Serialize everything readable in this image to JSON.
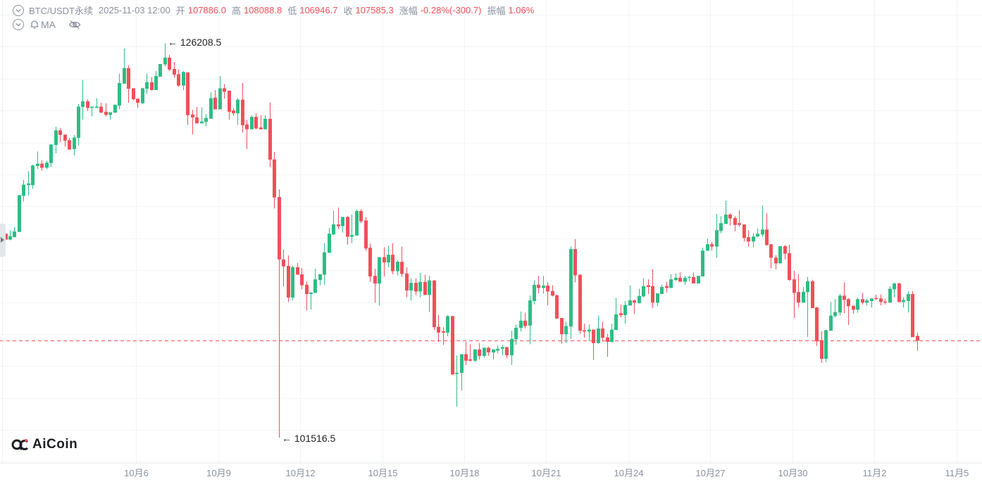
{
  "header": {
    "symbol": "BTC/USDT永续",
    "time": "2025-11-03 12:00",
    "open_label": "开",
    "open": "107886.0",
    "high_label": "高",
    "high": "108088.8",
    "low_label": "低",
    "low": "106946.7",
    "close_label": "收",
    "close": "107585.3",
    "change_label": "涨幅",
    "change": "-0.28%(-300.7)",
    "amplitude_label": "振幅",
    "amplitude": "1.06%",
    "indicator": "MA",
    "icons": [
      "chevron-down-circle-icon",
      "bell-icon",
      "eye-off-icon"
    ]
  },
  "logo": "AiCoin",
  "annotations": {
    "max": "126208.5",
    "min": "101516.5"
  },
  "colors": {
    "up": "#2ebd85",
    "down": "#f0505a",
    "label": "#8a919e",
    "grid": "#f3f4f6",
    "last_price_line": "#f0505a"
  },
  "chart_data": {
    "type": "candlestick",
    "first_candle_time": "2025-10-01 04:00",
    "interval_hours": 4,
    "ylim": [
      99930,
      128930
    ],
    "grid": true,
    "horizontal_grid_every": 2000,
    "last_price": 107585.3,
    "x_ticks": [
      {
        "label": "10月6",
        "date": "2025-10-06"
      },
      {
        "label": "10月9",
        "date": "2025-10-09"
      },
      {
        "label": "10月12",
        "date": "2025-10-12"
      },
      {
        "label": "10月15",
        "date": "2025-10-15"
      },
      {
        "label": "10月18",
        "date": "2025-10-18"
      },
      {
        "label": "10月21",
        "date": "2025-10-21"
      },
      {
        "label": "10月24",
        "date": "2025-10-24"
      },
      {
        "label": "10月27",
        "date": "2025-10-27"
      },
      {
        "label": "10月30",
        "date": "2025-10-30"
      },
      {
        "label": "11月2",
        "date": "2025-11-02"
      },
      {
        "label": "11月5",
        "date": "2025-11-05"
      }
    ],
    "ohlc": [
      [
        114290,
        114290,
        113920,
        113920
      ],
      [
        113920,
        114510,
        113880,
        114140
      ],
      [
        114070,
        114700,
        114070,
        114430
      ],
      [
        114400,
        116730,
        114400,
        116700
      ],
      [
        116660,
        117660,
        116310,
        117360
      ],
      [
        117330,
        118200,
        116690,
        117440
      ],
      [
        117330,
        118610,
        117100,
        118560
      ],
      [
        118530,
        119440,
        118340,
        118680
      ],
      [
        118680,
        118900,
        118240,
        118420
      ],
      [
        118420,
        118860,
        118330,
        118740
      ],
      [
        118710,
        119880,
        118460,
        119880
      ],
      [
        119850,
        120990,
        119330,
        120760
      ],
      [
        120760,
        120910,
        120030,
        120470
      ],
      [
        120500,
        120500,
        119760,
        120120
      ],
      [
        120150,
        120290,
        119560,
        119560
      ],
      [
        119590,
        120470,
        119190,
        120320
      ],
      [
        120290,
        122400,
        119820,
        122250
      ],
      [
        122230,
        123920,
        121430,
        122580
      ],
      [
        122580,
        122710,
        121980,
        122170
      ],
      [
        122170,
        122250,
        121640,
        122250
      ],
      [
        122170,
        122780,
        122170,
        122250
      ],
      [
        122250,
        122490,
        121870,
        121870
      ],
      [
        121930,
        122460,
        121640,
        121730
      ],
      [
        121730,
        121900,
        121430,
        121900
      ],
      [
        121870,
        122370,
        121870,
        122370
      ],
      [
        122310,
        124320,
        122080,
        123730
      ],
      [
        123690,
        125890,
        123690,
        124660
      ],
      [
        124660,
        124830,
        122490,
        123370
      ],
      [
        123400,
        123400,
        122640,
        122710
      ],
      [
        122750,
        122750,
        122170,
        122490
      ],
      [
        122460,
        123440,
        122420,
        123400
      ],
      [
        123370,
        124320,
        123050,
        123780
      ],
      [
        123780,
        124100,
        123250,
        123290
      ],
      [
        123290,
        124480,
        123290,
        124170
      ],
      [
        124130,
        124920,
        124130,
        124920
      ],
      [
        124890,
        126208.5,
        124760,
        125320
      ],
      [
        125320,
        125490,
        124470,
        124570
      ],
      [
        124610,
        125050,
        124060,
        124250
      ],
      [
        124280,
        124570,
        123480,
        123570
      ],
      [
        123570,
        124470,
        123280,
        124420
      ],
      [
        124390,
        124420,
        121130,
        121710
      ],
      [
        121760,
        122050,
        120510,
        121570
      ],
      [
        121580,
        122230,
        121200,
        121200
      ],
      [
        121200,
        122200,
        121200,
        121320
      ],
      [
        121290,
        121790,
        121020,
        121540
      ],
      [
        121490,
        123150,
        121490,
        122780
      ],
      [
        122810,
        123290,
        122080,
        122080
      ],
      [
        122080,
        124170,
        122080,
        123400
      ],
      [
        123400,
        123660,
        122750,
        123180
      ],
      [
        123250,
        123250,
        121430,
        121930
      ],
      [
        122010,
        122170,
        121680,
        121830
      ],
      [
        121830,
        122780,
        121100,
        122690
      ],
      [
        122690,
        123730,
        120610,
        121080
      ],
      [
        121130,
        121420,
        119590,
        120830
      ],
      [
        120830,
        121710,
        120830,
        121610
      ],
      [
        121610,
        121830,
        120830,
        120880
      ],
      [
        120940,
        121730,
        120830,
        120830
      ],
      [
        120830,
        121710,
        120830,
        121490
      ],
      [
        121490,
        122520,
        118460,
        118930
      ],
      [
        118940,
        119410,
        115870,
        116560
      ],
      [
        116590,
        117070,
        101516.5,
        112680
      ],
      [
        112680,
        113290,
        110990,
        112240
      ],
      [
        112270,
        112920,
        110010,
        110290
      ],
      [
        110290,
        112290,
        110100,
        112190
      ],
      [
        112190,
        112460,
        111720,
        111720
      ],
      [
        111750,
        112130,
        110800,
        111060
      ],
      [
        111090,
        111310,
        109480,
        110510
      ],
      [
        110510,
        110610,
        109530,
        110610
      ],
      [
        110580,
        112090,
        110580,
        111430
      ],
      [
        111390,
        111750,
        111060,
        111750
      ],
      [
        111720,
        113700,
        111090,
        113120
      ],
      [
        113090,
        114650,
        113090,
        114290
      ],
      [
        114240,
        115720,
        114210,
        114870
      ],
      [
        114870,
        115930,
        114580,
        114760
      ],
      [
        114760,
        115340,
        114360,
        115340
      ],
      [
        115340,
        115390,
        113600,
        114100
      ],
      [
        114100,
        115490,
        113700,
        114210
      ],
      [
        114170,
        115820,
        114170,
        115710
      ],
      [
        115710,
        115820,
        114950,
        115060
      ],
      [
        115120,
        115340,
        113230,
        113360
      ],
      [
        113410,
        113670,
        111280,
        111610
      ],
      [
        111650,
        112090,
        109970,
        111170
      ],
      [
        111170,
        112820,
        109790,
        112820
      ],
      [
        112820,
        113440,
        111610,
        112490
      ],
      [
        112490,
        113530,
        112190,
        112970
      ],
      [
        112970,
        113700,
        111750,
        111940
      ],
      [
        111940,
        112630,
        111680,
        112530
      ],
      [
        112530,
        113470,
        111580,
        111770
      ],
      [
        111800,
        112190,
        110300,
        110730
      ],
      [
        110730,
        111500,
        110100,
        111210
      ],
      [
        111210,
        111500,
        110430,
        110670
      ],
      [
        110670,
        111830,
        110290,
        111270
      ],
      [
        111270,
        111710,
        110450,
        110450
      ],
      [
        110450,
        111650,
        109380,
        111360
      ],
      [
        111360,
        111390,
        108240,
        108430
      ],
      [
        108460,
        109190,
        107510,
        108090
      ],
      [
        108180,
        108430,
        107330,
        108090
      ],
      [
        108090,
        109190,
        107870,
        109120
      ],
      [
        109120,
        109160,
        105430,
        105470
      ],
      [
        105500,
        106670,
        103450,
        105570
      ],
      [
        105570,
        106740,
        104470,
        106740
      ],
      [
        106740,
        107510,
        106060,
        106330
      ],
      [
        106420,
        107360,
        106290,
        106330
      ],
      [
        106330,
        107040,
        106260,
        107040
      ],
      [
        107040,
        107450,
        106410,
        106630
      ],
      [
        106630,
        107180,
        106520,
        107140
      ],
      [
        107140,
        107210,
        106640,
        106850
      ],
      [
        106850,
        107040,
        106410,
        107040
      ],
      [
        106960,
        107290,
        106790,
        107080
      ],
      [
        107080,
        107330,
        106670,
        107180
      ],
      [
        107180,
        107210,
        106490,
        106670
      ],
      [
        106670,
        108210,
        106060,
        107700
      ],
      [
        107670,
        108600,
        107330,
        108400
      ],
      [
        108380,
        109410,
        108160,
        108840
      ],
      [
        108840,
        109340,
        108350,
        108500
      ],
      [
        108530,
        110410,
        107370,
        110110
      ],
      [
        110070,
        111360,
        109860,
        111090
      ],
      [
        111090,
        111650,
        110550,
        110890
      ],
      [
        110890,
        111650,
        110520,
        111040
      ],
      [
        111040,
        111260,
        109790,
        110670
      ],
      [
        110700,
        111060,
        110360,
        110410
      ],
      [
        110430,
        110480,
        108970,
        108970
      ],
      [
        109010,
        109010,
        107400,
        107990
      ],
      [
        107990,
        108790,
        107430,
        108500
      ],
      [
        108470,
        113480,
        107700,
        113330
      ],
      [
        113330,
        113950,
        111240,
        111680
      ],
      [
        111720,
        111750,
        108020,
        108210
      ],
      [
        108240,
        108650,
        107770,
        108160
      ],
      [
        108160,
        108600,
        107580,
        108280
      ],
      [
        108280,
        108280,
        106380,
        107430
      ],
      [
        107430,
        109160,
        107400,
        108350
      ],
      [
        108350,
        108770,
        107520,
        107770
      ],
      [
        107800,
        108020,
        106580,
        107510
      ],
      [
        107510,
        108650,
        107480,
        108280
      ],
      [
        108250,
        110260,
        108250,
        109230
      ],
      [
        109310,
        109860,
        109040,
        109190
      ],
      [
        109190,
        110070,
        108650,
        109820
      ],
      [
        109790,
        111060,
        109790,
        110110
      ],
      [
        110110,
        110160,
        109260,
        109970
      ],
      [
        109940,
        110840,
        109910,
        110390
      ],
      [
        110360,
        111500,
        110300,
        111010
      ],
      [
        111060,
        111430,
        110510,
        110950
      ],
      [
        111010,
        112060,
        109640,
        109970
      ],
      [
        109970,
        110550,
        109750,
        110550
      ],
      [
        110510,
        111090,
        110510,
        110950
      ],
      [
        111010,
        111280,
        110600,
        110890
      ],
      [
        110890,
        111750,
        110890,
        111430
      ],
      [
        111390,
        111800,
        111330,
        111530
      ],
      [
        111530,
        111870,
        111260,
        111280
      ],
      [
        111280,
        111650,
        111090,
        111530
      ],
      [
        111530,
        111650,
        111310,
        111580
      ],
      [
        111580,
        111870,
        111170,
        111170
      ],
      [
        111170,
        111650,
        111170,
        111650
      ],
      [
        111610,
        113410,
        111610,
        113230
      ],
      [
        113220,
        113990,
        113220,
        113630
      ],
      [
        113630,
        113770,
        113230,
        113480
      ],
      [
        113480,
        115530,
        112790,
        114510
      ],
      [
        114460,
        115390,
        114320,
        114950
      ],
      [
        114900,
        116370,
        114900,
        115490
      ],
      [
        115490,
        115580,
        114800,
        115240
      ],
      [
        115270,
        115390,
        114430,
        114840
      ],
      [
        114950,
        115750,
        114730,
        114840
      ],
      [
        114870,
        114870,
        113800,
        114020
      ],
      [
        114070,
        114510,
        113480,
        113800
      ],
      [
        113800,
        114320,
        113440,
        114110
      ],
      [
        114110,
        114610,
        114070,
        114290
      ],
      [
        114240,
        116070,
        114110,
        114550
      ],
      [
        114550,
        115580,
        113530,
        113580
      ],
      [
        113630,
        113630,
        112120,
        112780
      ],
      [
        112790,
        112940,
        112050,
        112430
      ],
      [
        112430,
        113510,
        112430,
        113510
      ],
      [
        113510,
        113580,
        112680,
        113040
      ],
      [
        113070,
        113600,
        111330,
        111390
      ],
      [
        111430,
        111970,
        109010,
        110580
      ],
      [
        110630,
        111750,
        109670,
        109970
      ],
      [
        109970,
        110950,
        109970,
        110650
      ],
      [
        110630,
        111580,
        107810,
        111310
      ],
      [
        111310,
        111400,
        109630,
        109630
      ],
      [
        109670,
        109700,
        107260,
        107550
      ],
      [
        107620,
        108180,
        106190,
        106450
      ],
      [
        106450,
        108280,
        106230,
        108240
      ],
      [
        108210,
        110000,
        108210,
        109160
      ],
      [
        109130,
        110190,
        109040,
        109380
      ],
      [
        109350,
        110510,
        109160,
        110410
      ],
      [
        110410,
        111240,
        109310,
        110140
      ],
      [
        110190,
        110260,
        108570,
        109750
      ],
      [
        109780,
        109780,
        109260,
        109530
      ],
      [
        109530,
        110300,
        109340,
        110190
      ],
      [
        110190,
        110580,
        109860,
        109970
      ],
      [
        109970,
        110220,
        109780,
        110110
      ],
      [
        110070,
        110260,
        109660,
        110230
      ],
      [
        110260,
        110480,
        110140,
        110190
      ],
      [
        110230,
        110480,
        109800,
        110010
      ],
      [
        110040,
        110220,
        109860,
        109970
      ],
      [
        109970,
        110990,
        109970,
        110840
      ],
      [
        110800,
        111210,
        110300,
        111170
      ],
      [
        111170,
        111210,
        110010,
        110010
      ],
      [
        110010,
        110290,
        109660,
        110140
      ],
      [
        110070,
        110700,
        109350,
        110510
      ],
      [
        110510,
        110700,
        107810,
        107810
      ],
      [
        107886.0,
        108088.8,
        106946.7,
        107585.3
      ]
    ]
  }
}
